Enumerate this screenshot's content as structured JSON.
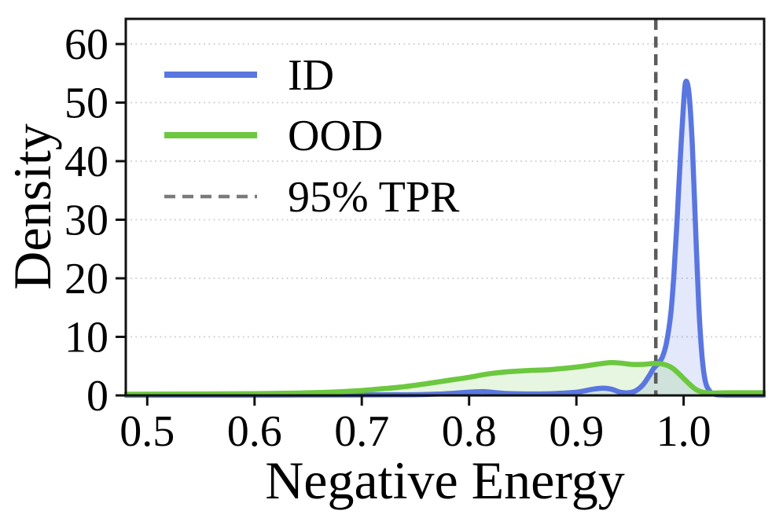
{
  "figure": {
    "background": "#ffffff",
    "axes_color": "#111111",
    "text_color": "#000000"
  },
  "chart_data": {
    "type": "area",
    "kind": "kde-density",
    "title": "",
    "xlabel": "Negative Energy",
    "ylabel": "Density",
    "xlim": [
      0.48,
      1.075
    ],
    "ylim": [
      0,
      64.3
    ],
    "xticks": [
      0.5,
      0.6,
      0.7,
      0.8,
      0.9,
      1.0
    ],
    "xtick_labels": [
      "0.5",
      "0.6",
      "0.7",
      "0.8",
      "0.9",
      "1.0"
    ],
    "yticks": [
      0,
      10,
      20,
      30,
      40,
      50,
      60
    ],
    "ytick_labels": [
      "0",
      "10",
      "20",
      "30",
      "40",
      "50",
      "60"
    ],
    "grid": {
      "axis": "y",
      "style": "dotted",
      "color": "#cbcbcb"
    },
    "legend": {
      "position": "upper-left",
      "frame": false
    },
    "threshold": {
      "label": "95% TPR",
      "x": 0.974,
      "style": "dashed",
      "color": "#5c5c5c",
      "legend_color": "#7a7a7a"
    },
    "series": [
      {
        "name": "ID",
        "color": "#5a76e0",
        "fill_opacity": 0.17,
        "peak": {
          "x": 1.002,
          "density": 53.6
        },
        "x": [
          0.48,
          0.6,
          0.7,
          0.75,
          0.775,
          0.792,
          0.806,
          0.815,
          0.826,
          0.84,
          0.86,
          0.88,
          0.9,
          0.915,
          0.925,
          0.933,
          0.941,
          0.948,
          0.955,
          0.962,
          0.968,
          0.972,
          0.976,
          0.98,
          0.984,
          0.988,
          0.991,
          0.994,
          0.997,
          1.0,
          1.002,
          1.005,
          1.008,
          1.011,
          1.014,
          1.017,
          1.02,
          1.024,
          1.03,
          1.045,
          1.075
        ],
        "y": [
          0.05,
          0.05,
          0.08,
          0.12,
          0.25,
          0.45,
          0.62,
          0.65,
          0.45,
          0.3,
          0.25,
          0.32,
          0.55,
          1.05,
          1.25,
          1.05,
          0.55,
          0.45,
          0.75,
          1.8,
          3.4,
          4.6,
          5.4,
          6.5,
          9.0,
          14.0,
          21.0,
          30.5,
          41.0,
          50.0,
          53.6,
          51.5,
          43.0,
          29.0,
          15.5,
          7.0,
          2.6,
          0.8,
          0.15,
          0.05,
          0.05
        ]
      },
      {
        "name": "OOD",
        "color": "#6cc83f",
        "fill_opacity": 0.16,
        "peak": {
          "x": 0.932,
          "density": 5.6
        },
        "x": [
          0.48,
          0.55,
          0.6,
          0.64,
          0.67,
          0.7,
          0.72,
          0.74,
          0.76,
          0.78,
          0.8,
          0.815,
          0.83,
          0.845,
          0.86,
          0.875,
          0.89,
          0.905,
          0.92,
          0.932,
          0.942,
          0.952,
          0.962,
          0.972,
          0.979,
          0.985,
          0.99,
          0.995,
          1.0,
          1.005,
          1.01,
          1.015,
          1.021,
          1.028,
          1.04,
          1.075
        ],
        "y": [
          0.2,
          0.25,
          0.3,
          0.4,
          0.55,
          0.85,
          1.15,
          1.5,
          2.0,
          2.55,
          3.1,
          3.6,
          3.95,
          4.15,
          4.3,
          4.4,
          4.65,
          4.95,
          5.35,
          5.6,
          5.5,
          5.3,
          5.3,
          5.45,
          5.4,
          5.1,
          4.6,
          3.8,
          2.9,
          2.0,
          1.2,
          0.7,
          0.45,
          0.4,
          0.45,
          0.45
        ]
      }
    ]
  }
}
